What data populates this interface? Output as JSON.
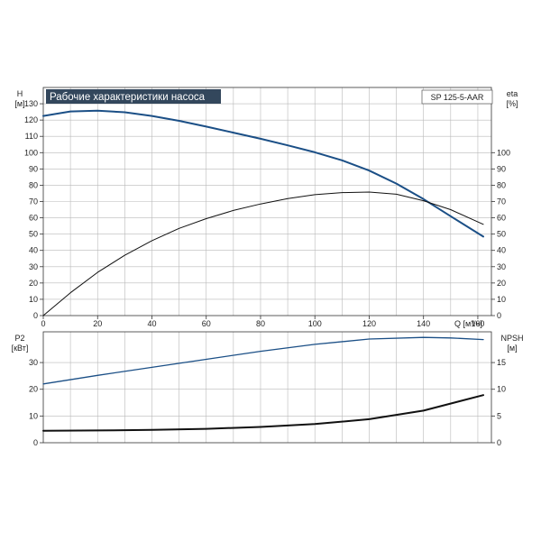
{
  "title": "Рабочие характеристики насоса",
  "model": "SP 125-5-AAR",
  "colors": {
    "title_bg": "#33475c",
    "curve_blue": "#1b4f86",
    "curve_black": "#111111",
    "grid": "#b9b9b9"
  },
  "chart_data": [
    {
      "type": "line",
      "panel": "pump-performance",
      "xlabel": "Q [м³/ч]",
      "xlim": [
        0,
        165
      ],
      "x_ticks": [
        "0",
        "20",
        "40",
        "60",
        "80",
        "100",
        "120",
        "140",
        "160"
      ],
      "y_left_label": [
        "H",
        "[м]"
      ],
      "y_left_lim": [
        0,
        140
      ],
      "y_left_ticks": [
        "0",
        "10",
        "20",
        "30",
        "40",
        "50",
        "60",
        "70",
        "80",
        "90",
        "100",
        "110",
        "120",
        "130"
      ],
      "y_right_label": [
        "eta",
        "[%]"
      ],
      "y_right_lim": [
        0,
        140
      ],
      "y_right_ticks": [
        "0",
        "10",
        "20",
        "30",
        "40",
        "50",
        "60",
        "70",
        "80",
        "90",
        "100"
      ],
      "grid": true,
      "series": [
        {
          "axis": "left",
          "color": "#1b4f86",
          "stroke": 2.0,
          "x": [
            0,
            10,
            20,
            30,
            40,
            50,
            60,
            70,
            80,
            90,
            100,
            110,
            120,
            130,
            140,
            150,
            162
          ],
          "y": [
            122.5,
            125.3,
            125.8,
            124.8,
            122.5,
            119.5,
            116.0,
            112.3,
            108.5,
            104.5,
            100.2,
            95.3,
            89.0,
            81.0,
            71.5,
            61.0,
            48.5
          ]
        },
        {
          "axis": "right",
          "color": "#111111",
          "stroke": 1.0,
          "x": [
            0,
            10,
            20,
            30,
            40,
            50,
            60,
            70,
            80,
            90,
            100,
            110,
            120,
            130,
            140,
            150,
            162
          ],
          "y": [
            0,
            14,
            26.5,
            37,
            46,
            53.5,
            59.5,
            64.5,
            68.5,
            71.8,
            74.2,
            75.5,
            75.8,
            74.5,
            70.5,
            65,
            56
          ]
        }
      ]
    },
    {
      "type": "line",
      "panel": "power-npsh",
      "xlim": [
        0,
        165
      ],
      "y_left_label": [
        "P2",
        "[кВт]"
      ],
      "y_left_lim": [
        0,
        41.5
      ],
      "y_left_ticks": [
        "0",
        "10",
        "20",
        "30"
      ],
      "y_right_label": [
        "NPSH",
        "[м]"
      ],
      "y_right_lim": [
        0,
        20.75
      ],
      "y_right_ticks": [
        "0",
        "5",
        "10",
        "15"
      ],
      "grid": true,
      "series": [
        {
          "axis": "left",
          "color": "#1b4f86",
          "stroke": 1.3,
          "x": [
            0,
            20,
            40,
            60,
            80,
            100,
            120,
            140,
            150,
            162
          ],
          "y": [
            22,
            25.2,
            28.2,
            31.2,
            34.2,
            36.8,
            38.8,
            39.4,
            39.2,
            38.6
          ]
        },
        {
          "axis": "right",
          "color": "#111111",
          "stroke": 2.0,
          "x": [
            0,
            20,
            40,
            60,
            80,
            100,
            120,
            140,
            162
          ],
          "y": [
            2.25,
            2.3,
            2.4,
            2.6,
            2.95,
            3.5,
            4.4,
            6.0,
            8.9
          ]
        }
      ]
    }
  ]
}
